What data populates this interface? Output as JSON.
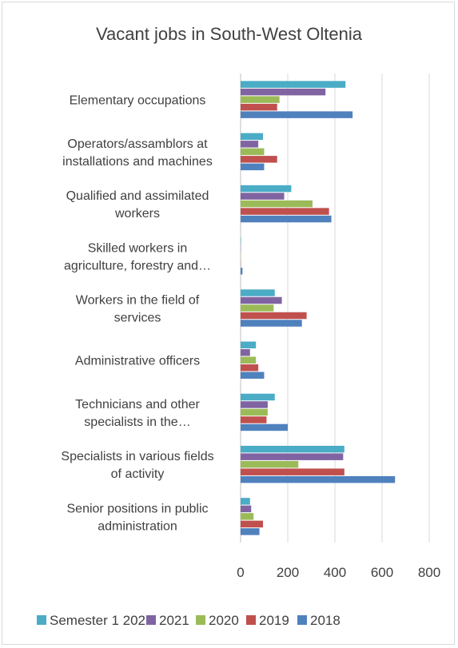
{
  "chart_data": {
    "type": "bar",
    "orientation": "horizontal",
    "title": "Vacant jobs in South-West Oltenia",
    "categories": [
      "Elementary occupations",
      "Operators/assamblors at installations and machines",
      "Qualified and assimilated workers",
      "Skilled workers in agriculture, forestry and…",
      "Workers in the field of services",
      "Administrative officers",
      "Technicians and other specialists in the…",
      "Specialists in various fields of activity",
      "Senior positions in public administration"
    ],
    "category_lines": [
      [
        "Elementary occupations"
      ],
      [
        "Operators/assamblors at",
        "installations and machines"
      ],
      [
        "Qualified and assimilated",
        "workers"
      ],
      [
        "Skilled workers in",
        "agriculture, forestry and…"
      ],
      [
        "Workers in the field of",
        "services"
      ],
      [
        "Administrative officers"
      ],
      [
        "Technicians and other",
        "specialists in the…"
      ],
      [
        "Specialists in various fields",
        "of activity"
      ],
      [
        "Senior positions in public",
        "administration"
      ]
    ],
    "series": [
      {
        "name": "Semester 1 2022",
        "color": "#4bacc6",
        "values": [
          445,
          95,
          215,
          2,
          145,
          65,
          145,
          440,
          40
        ]
      },
      {
        "name": "2021",
        "color": "#8064a2",
        "values": [
          360,
          75,
          185,
          1,
          175,
          40,
          115,
          435,
          45
        ]
      },
      {
        "name": "2020",
        "color": "#9bbb59",
        "values": [
          165,
          100,
          305,
          1,
          140,
          65,
          115,
          245,
          55
        ]
      },
      {
        "name": "2019",
        "color": "#c0504d",
        "values": [
          155,
          155,
          375,
          1,
          280,
          75,
          110,
          440,
          95
        ]
      },
      {
        "name": "2018",
        "color": "#4f81bd",
        "values": [
          475,
          100,
          385,
          8,
          260,
          100,
          200,
          655,
          80
        ]
      }
    ],
    "xlim": [
      0,
      800
    ],
    "xticks": [
      "0",
      "200",
      "400",
      "600",
      "800"
    ],
    "grid": true,
    "legend_position": "bottom"
  }
}
